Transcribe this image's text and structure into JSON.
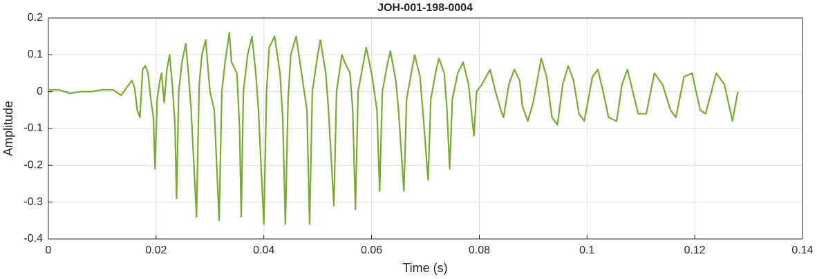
{
  "chart_data": {
    "type": "line",
    "title": "JOH-001-198-0004",
    "xlabel": "Time (s)",
    "ylabel": "Amplitude",
    "x": [
      0,
      0.002,
      0.004,
      0.006,
      0.008,
      0.01,
      0.012,
      0.0135,
      0.015,
      0.0155,
      0.016,
      0.0165,
      0.017,
      0.0175,
      0.018,
      0.0185,
      0.019,
      0.0195,
      0.0198,
      0.0202,
      0.0207,
      0.021,
      0.0215,
      0.022,
      0.0225,
      0.023,
      0.0235,
      0.0238,
      0.0242,
      0.0248,
      0.0255,
      0.026,
      0.0265,
      0.0275,
      0.028,
      0.0285,
      0.0292,
      0.03,
      0.0308,
      0.0317,
      0.0322,
      0.0328,
      0.0336,
      0.034,
      0.035,
      0.0355,
      0.0358,
      0.0362,
      0.037,
      0.0378,
      0.0385,
      0.039,
      0.04,
      0.0405,
      0.041,
      0.042,
      0.043,
      0.0435,
      0.044,
      0.0445,
      0.045,
      0.046,
      0.047,
      0.048,
      0.0485,
      0.049,
      0.05,
      0.0505,
      0.0515,
      0.052,
      0.053,
      0.0535,
      0.0545,
      0.055,
      0.056,
      0.0565,
      0.057,
      0.0575,
      0.0585,
      0.059,
      0.06,
      0.061,
      0.0615,
      0.062,
      0.063,
      0.0635,
      0.0645,
      0.065,
      0.066,
      0.0665,
      0.0675,
      0.068,
      0.069,
      0.0695,
      0.0705,
      0.071,
      0.072,
      0.0725,
      0.0735,
      0.074,
      0.0745,
      0.075,
      0.076,
      0.077,
      0.078,
      0.0785,
      0.079,
      0.0795,
      0.0805,
      0.082,
      0.083,
      0.084,
      0.0845,
      0.0855,
      0.0865,
      0.0875,
      0.088,
      0.089,
      0.09,
      0.0915,
      0.0925,
      0.0935,
      0.0945,
      0.0955,
      0.0965,
      0.0975,
      0.0985,
      0.0995,
      0.101,
      0.102,
      0.103,
      0.104,
      0.1055,
      0.1065,
      0.1075,
      0.1085,
      0.1095,
      0.111,
      0.1125,
      0.114,
      0.1155,
      0.1165,
      0.118,
      0.1195,
      0.121,
      0.122,
      0.124,
      0.1255,
      0.127,
      0.128
    ],
    "series": [
      {
        "name": "Amplitude",
        "color": "#77ac30",
        "values": [
          0.005,
          0.005,
          -0.005,
          0.0,
          0.0,
          0.005,
          0.005,
          -0.01,
          0.02,
          0.03,
          0.01,
          -0.05,
          -0.07,
          0.06,
          0.07,
          0.05,
          -0.02,
          -0.07,
          -0.21,
          -0.02,
          0.03,
          0.05,
          -0.03,
          0.06,
          0.1,
          0.02,
          -0.09,
          -0.29,
          0.0,
          0.08,
          0.13,
          0.05,
          -0.05,
          -0.34,
          0.02,
          0.1,
          0.14,
          0.0,
          -0.05,
          -0.35,
          0.0,
          0.08,
          0.16,
          0.08,
          0.05,
          -0.1,
          -0.34,
          0.0,
          0.1,
          0.15,
          0.05,
          -0.05,
          -0.36,
          0.0,
          0.12,
          0.15,
          0.05,
          -0.07,
          -0.36,
          -0.02,
          0.1,
          0.15,
          0.05,
          -0.05,
          -0.36,
          0.0,
          0.1,
          0.14,
          0.05,
          -0.05,
          -0.31,
          0.0,
          0.1,
          0.08,
          0.05,
          -0.05,
          -0.32,
          0.0,
          0.08,
          0.12,
          0.05,
          -0.05,
          -0.27,
          0.0,
          0.08,
          0.11,
          0.03,
          -0.05,
          -0.27,
          -0.02,
          0.06,
          0.1,
          0.04,
          -0.05,
          -0.24,
          -0.02,
          0.06,
          0.09,
          0.05,
          -0.05,
          -0.21,
          -0.02,
          0.05,
          0.08,
          0.02,
          -0.05,
          -0.12,
          0.0,
          0.02,
          0.06,
          0.0,
          -0.05,
          -0.07,
          0.02,
          0.06,
          0.03,
          -0.04,
          -0.08,
          -0.03,
          0.09,
          0.04,
          -0.07,
          -0.09,
          0.02,
          0.07,
          0.03,
          -0.06,
          -0.08,
          0.04,
          0.06,
          0.0,
          -0.07,
          -0.08,
          0.02,
          0.06,
          0.0,
          -0.06,
          -0.06,
          0.05,
          0.02,
          -0.05,
          -0.07,
          0.04,
          0.05,
          -0.05,
          -0.06,
          0.05,
          0.02,
          -0.08,
          0.0
        ]
      }
    ],
    "xlim": [
      0,
      0.14
    ],
    "xticks": [
      0,
      0.02,
      0.04,
      0.06,
      0.08,
      0.1,
      0.12,
      0.14
    ],
    "ylim": [
      -0.4,
      0.2
    ],
    "yticks": [
      -0.4,
      -0.3,
      -0.2,
      -0.1,
      0,
      0.1,
      0.2
    ],
    "grid": true
  }
}
